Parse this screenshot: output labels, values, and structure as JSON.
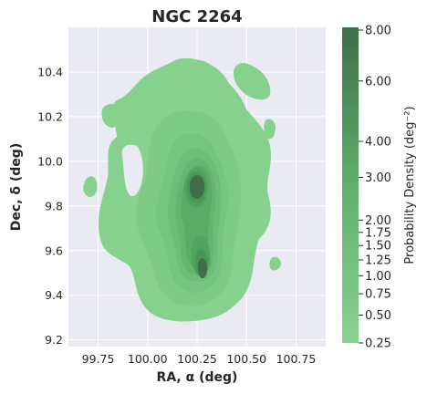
{
  "chart_data": {
    "type": "heatmap",
    "subtype": "kde-contour",
    "title": "NGC 2264",
    "xlabel": "RA, α (deg)",
    "ylabel": "Dec, δ (deg)",
    "xlim": [
      99.6,
      100.9
    ],
    "ylim": [
      9.17,
      10.6
    ],
    "xticks": [
      "99.75",
      "100.00",
      "100.25",
      "100.50",
      "100.75"
    ],
    "xtick_values": [
      99.75,
      100.0,
      100.25,
      100.5,
      100.75
    ],
    "yticks": [
      "9.2",
      "9.4",
      "9.6",
      "9.8",
      "10.0",
      "10.2",
      "10.4"
    ],
    "ytick_values": [
      9.2,
      9.4,
      9.6,
      9.8,
      10.0,
      10.2,
      10.4
    ],
    "grid": true,
    "colorbar": {
      "label": "Probability Density (deg⁻²)",
      "scale": "sqrt",
      "ticks": [
        "0.25",
        "0.50",
        "0.75",
        "1.00",
        "1.25",
        "1.50",
        "1.75",
        "2.00",
        "3.00",
        "4.00",
        "6.00",
        "8.00"
      ],
      "tick_values": [
        0.25,
        0.5,
        0.75,
        1.0,
        1.25,
        1.5,
        1.75,
        2.0,
        3.0,
        4.0,
        6.0,
        8.0
      ],
      "color_low": "#88d38f",
      "color_high": "#3f6e49"
    },
    "peaks": [
      {
        "ra": 100.2,
        "dec": 9.87,
        "density": 8.0
      },
      {
        "ra": 100.22,
        "dec": 9.5,
        "density": 6.0
      }
    ],
    "colors": {
      "background": "#eaeaf2",
      "grid": "#ffffff"
    }
  }
}
